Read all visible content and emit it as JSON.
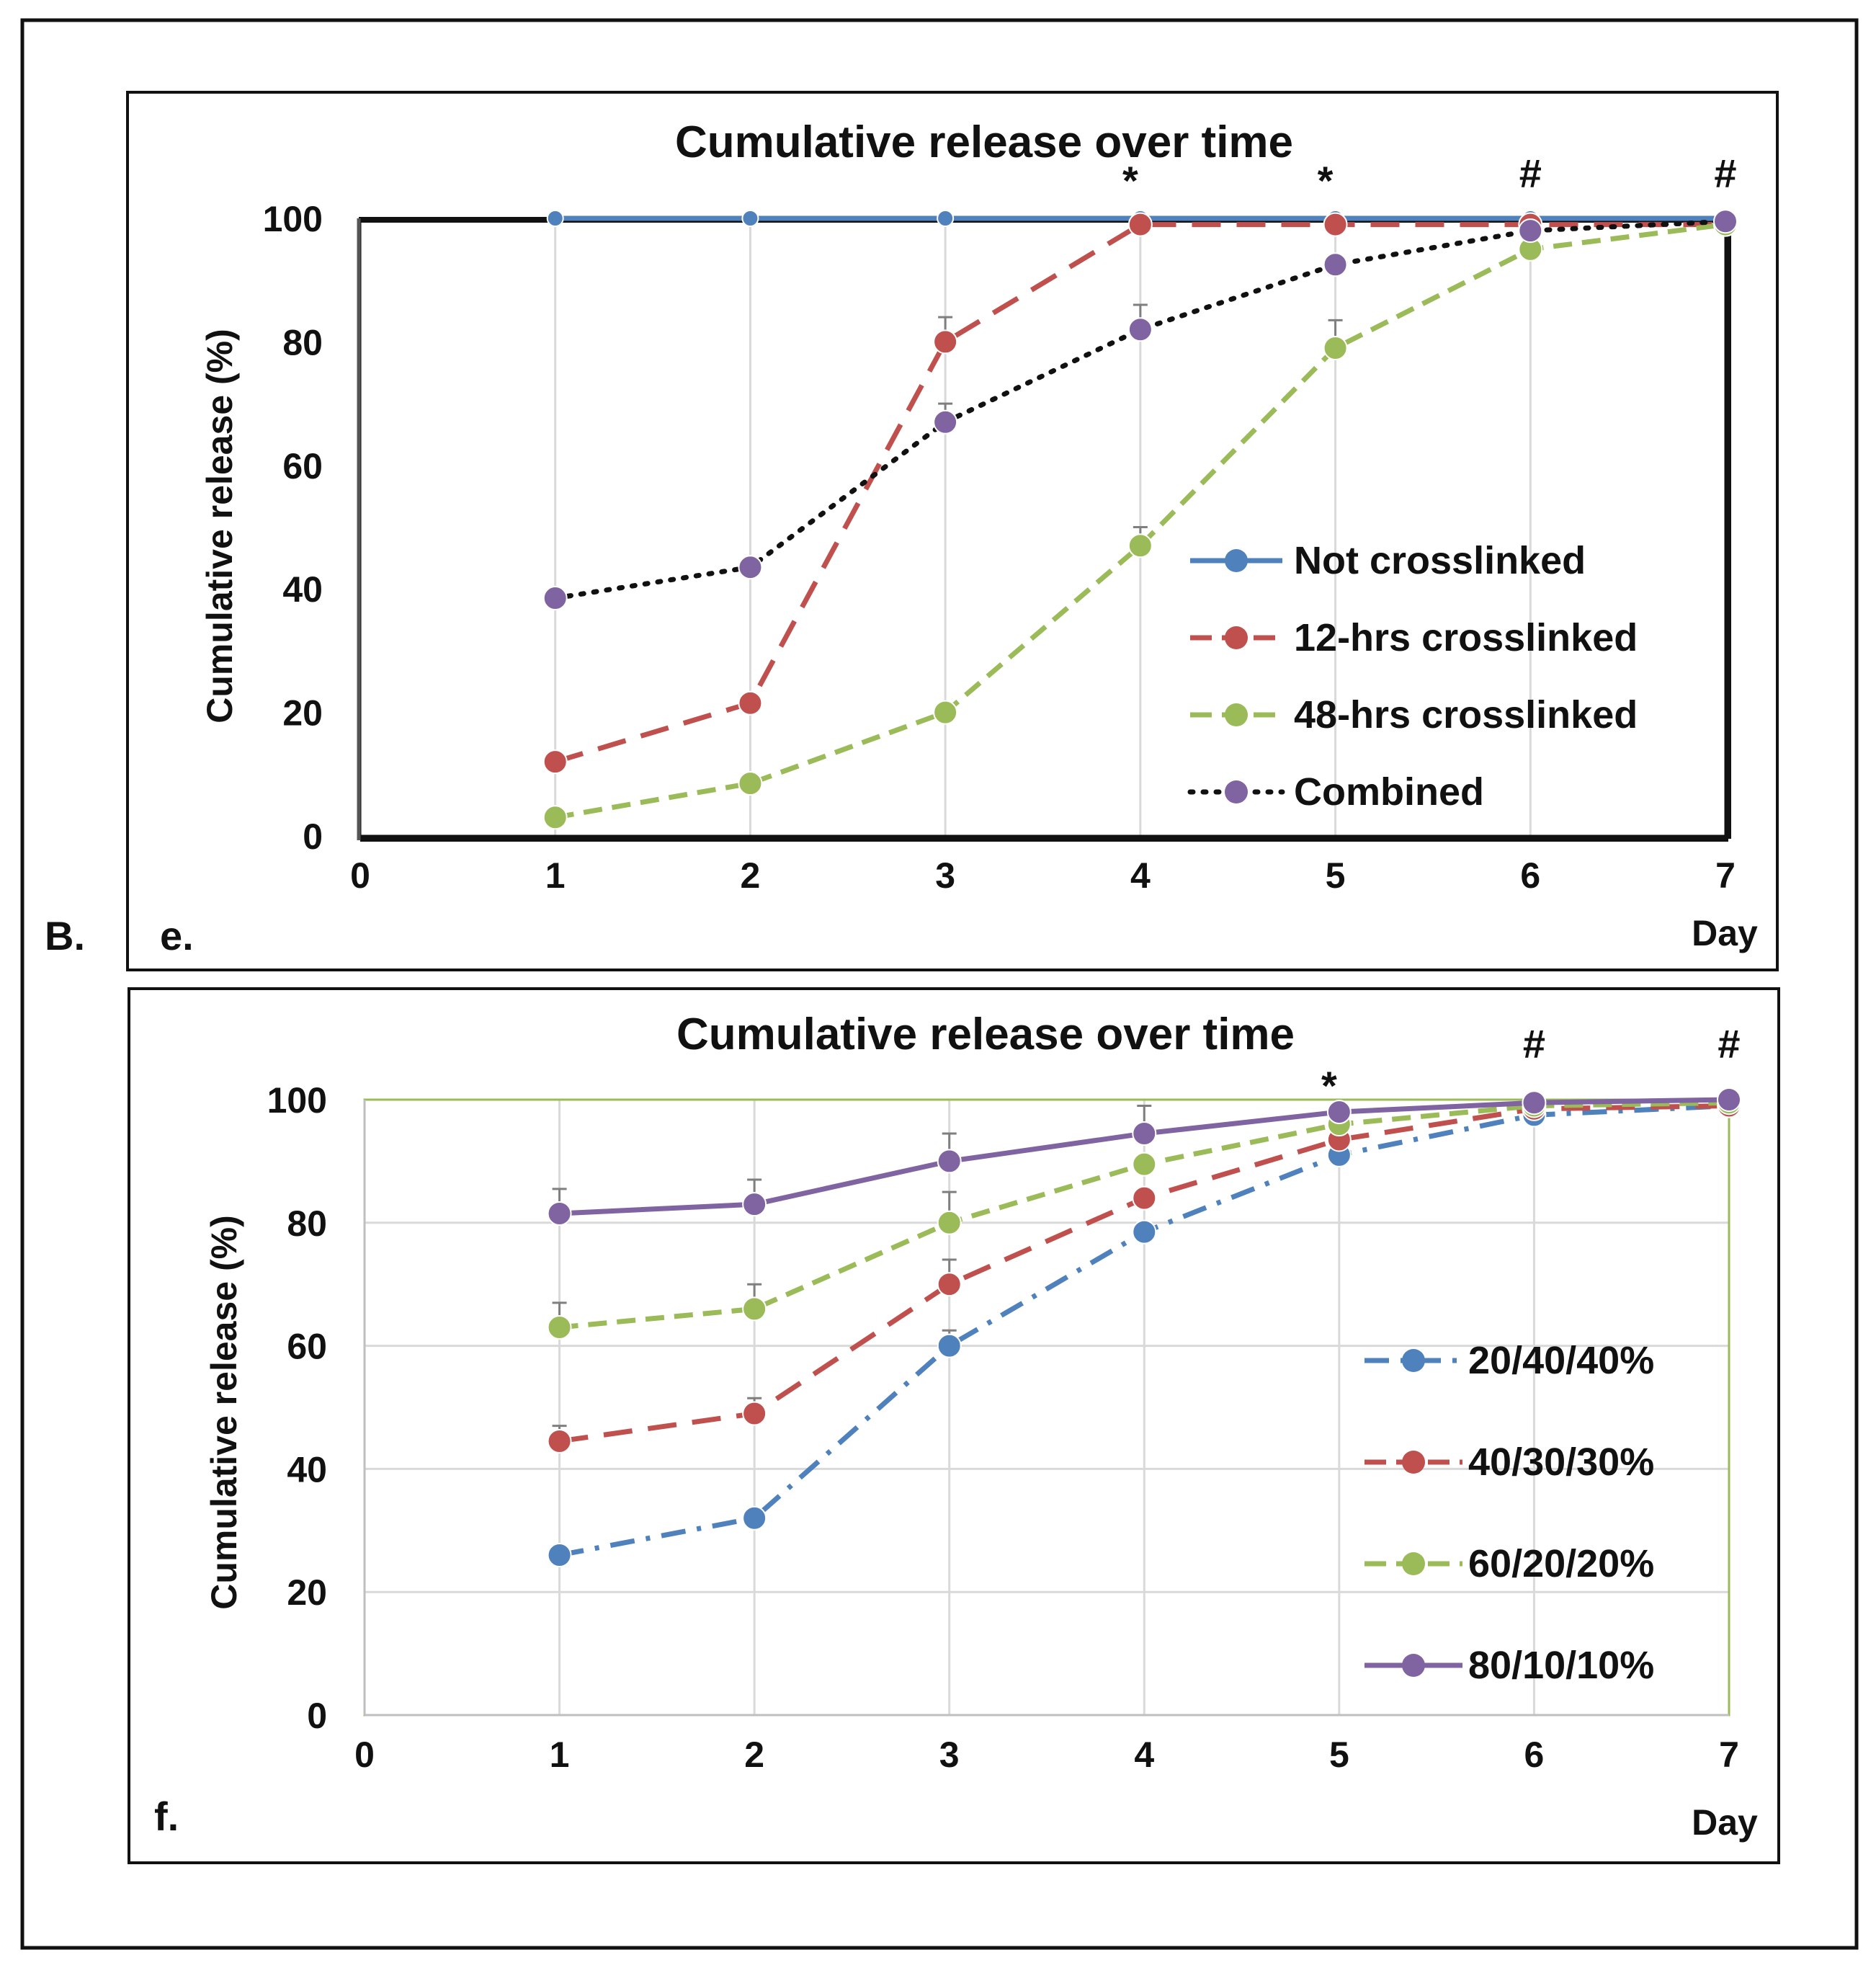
{
  "figure": {
    "section_label": "B.",
    "colors": {
      "blue": "#4f81bd",
      "red": "#c0504d",
      "green": "#9bbb59",
      "purple": "#8064a2",
      "black": "#111111",
      "grid": "#d9d9d9",
      "frame_green": "#9bbb59"
    }
  },
  "chart_data": [
    {
      "type": "line",
      "panel_label": "e.",
      "title": "Cumulative release over time",
      "xlabel": "Day",
      "ylabel": "Cumulative release  (%)",
      "xlim": [
        0,
        7
      ],
      "ylim": [
        0,
        100
      ],
      "x_ticks": [
        "0",
        "1",
        "2",
        "3",
        "4",
        "5",
        "6",
        "7"
      ],
      "y_ticks": [
        "0",
        "20",
        "40",
        "60",
        "80",
        "100"
      ],
      "x": [
        1,
        2,
        3,
        4,
        5,
        6,
        7
      ],
      "series": [
        {
          "name": "Not crosslinked",
          "color": "#4f81bd",
          "dash": "solid",
          "marker_size": "small",
          "values": [
            100,
            100,
            100,
            100,
            100,
            100,
            100
          ],
          "errors": [
            0,
            0,
            0,
            0,
            0,
            0,
            0
          ]
        },
        {
          "name": "12-hrs crosslinked",
          "color": "#c0504d",
          "dash": "longdash",
          "marker_size": "large",
          "values": [
            12,
            21.5,
            80,
            99,
            99,
            99,
            99
          ],
          "errors": [
            0,
            0,
            4,
            0,
            0,
            0,
            0
          ]
        },
        {
          "name": "48-hrs crosslinked",
          "color": "#9bbb59",
          "dash": "dash",
          "marker_size": "large",
          "values": [
            3,
            8.5,
            20,
            47,
            79,
            95,
            99
          ],
          "errors": [
            0,
            0,
            0,
            3,
            4.5,
            0,
            0
          ]
        },
        {
          "name": "Combined",
          "color": "#111111",
          "marker_color": "#8064a2",
          "dash": "dot",
          "marker_size": "large",
          "values": [
            38.5,
            43.5,
            67,
            82,
            92.5,
            98,
            99.5
          ],
          "errors": [
            0,
            0,
            3,
            4,
            0,
            0,
            0
          ]
        }
      ],
      "annotations": [
        {
          "text": "*",
          "x": 4
        },
        {
          "text": "*",
          "x": 5
        },
        {
          "text": "#",
          "x": 6
        },
        {
          "text": "#",
          "x": 7
        }
      ],
      "legend_position": "lower-right",
      "grid": "vertical-major"
    },
    {
      "type": "line",
      "panel_label": "f.",
      "title": "Cumulative release over time",
      "xlabel": "Day",
      "ylabel": "Cumulative release  (%)",
      "xlim": [
        0,
        7
      ],
      "ylim": [
        0,
        100
      ],
      "x_ticks": [
        "0",
        "1",
        "2",
        "3",
        "4",
        "5",
        "6",
        "7"
      ],
      "y_ticks": [
        "0",
        "20",
        "40",
        "60",
        "80",
        "100"
      ],
      "x": [
        1,
        2,
        3,
        4,
        5,
        6,
        7
      ],
      "series": [
        {
          "name": "20/40/40%",
          "color": "#4f81bd",
          "dash": "dashdot",
          "marker_size": "large",
          "values": [
            26,
            32,
            60,
            78.5,
            91,
            97.5,
            99
          ],
          "errors": [
            0,
            0,
            2.5,
            0,
            0,
            0,
            0
          ]
        },
        {
          "name": "40/30/30%",
          "color": "#c0504d",
          "dash": "longdash",
          "marker_size": "large",
          "values": [
            44.5,
            49,
            70,
            84,
            93.5,
            98.5,
            99
          ],
          "errors": [
            2.5,
            2.5,
            4,
            0,
            0,
            0,
            0
          ]
        },
        {
          "name": "60/20/20%",
          "color": "#9bbb59",
          "dash": "dash",
          "marker_size": "large",
          "values": [
            63,
            66,
            80,
            89.5,
            96,
            99,
            99.5
          ],
          "errors": [
            4,
            4,
            5,
            0,
            0,
            0,
            0
          ]
        },
        {
          "name": "80/10/10%",
          "color": "#8064a2",
          "dash": "solid",
          "marker_size": "large",
          "values": [
            81.5,
            83,
            90,
            94.5,
            98,
            99.5,
            100
          ],
          "errors": [
            4,
            4,
            4.5,
            4.5,
            0,
            0,
            0
          ]
        }
      ],
      "annotations": [
        {
          "text": "*",
          "x": 5
        },
        {
          "text": "#",
          "x": 6
        },
        {
          "text": "#",
          "x": 7
        }
      ],
      "legend_position": "lower-right",
      "grid": "both"
    }
  ]
}
